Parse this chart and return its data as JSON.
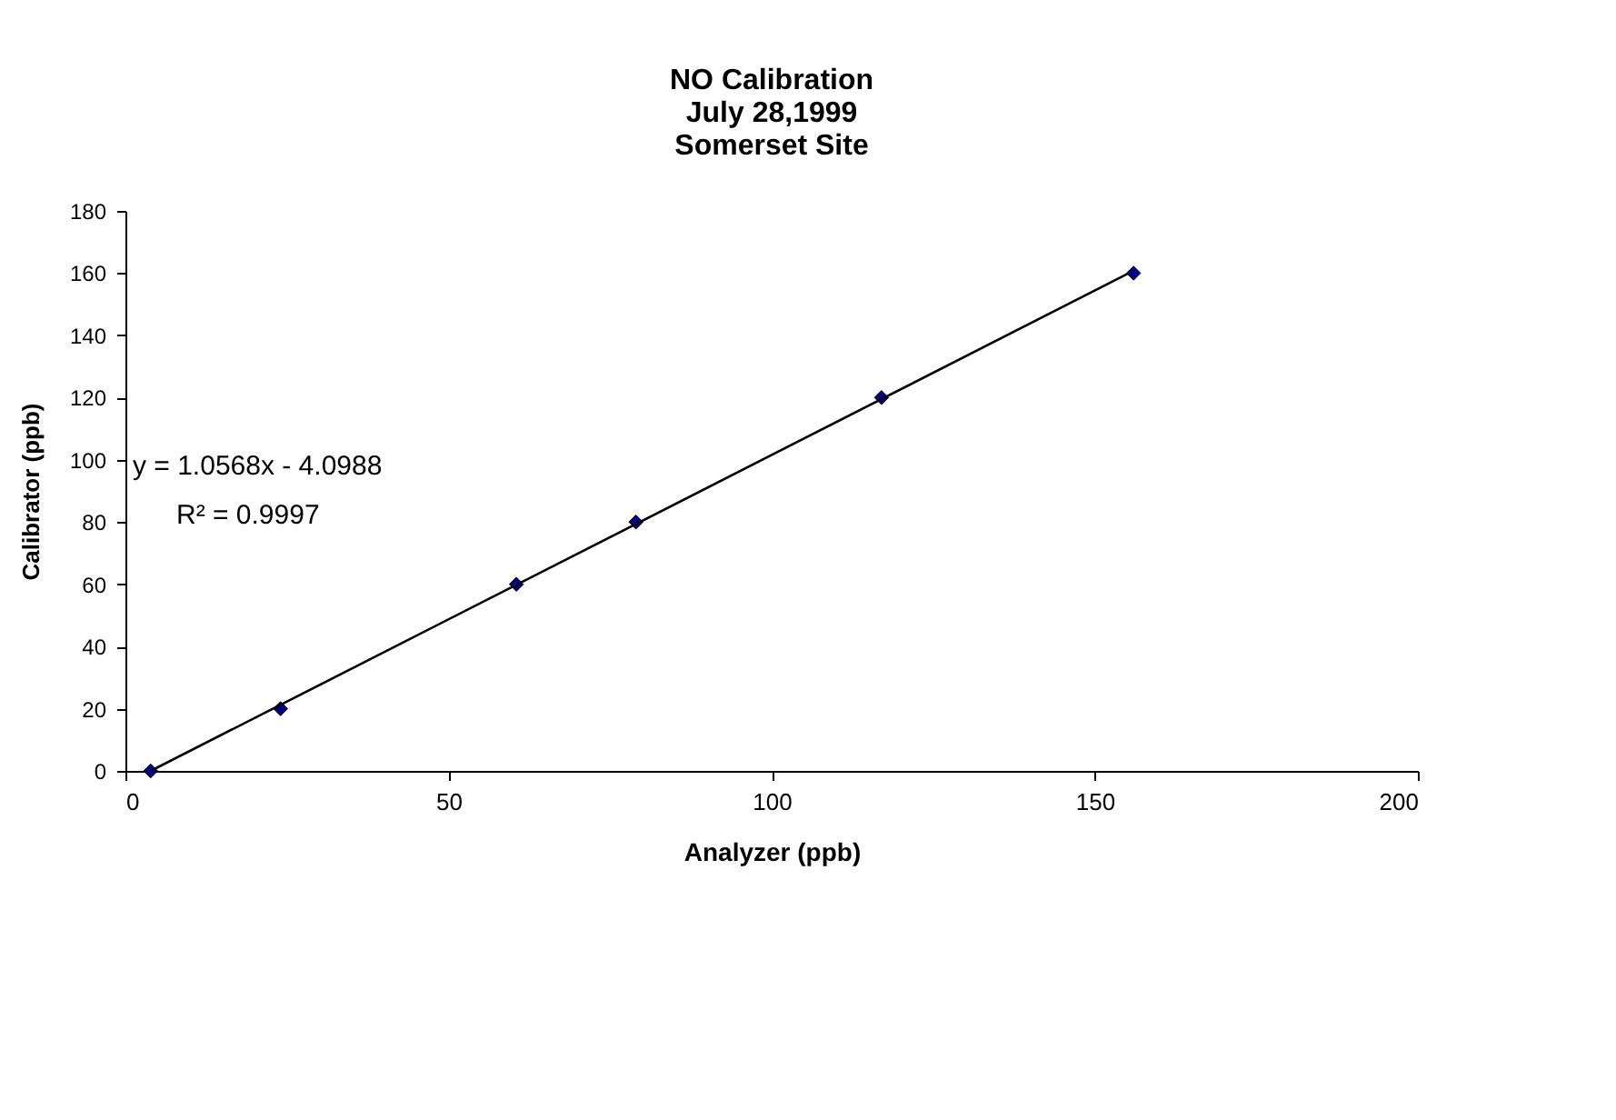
{
  "chart_data": {
    "type": "scatter",
    "title": "NO Calibration\nJuly 28,1999\nSomerset Site",
    "xlabel": "Analyzer (ppb)",
    "ylabel": "Calibrator (ppb)",
    "x": [
      3.9,
      24,
      60.5,
      79,
      117,
      156
    ],
    "series": [
      {
        "color": "#000080",
        "marker": "diamond",
        "values": [
          0,
          20,
          60,
          80,
          120,
          160
        ]
      },
      {
        "type": "line",
        "color": "#000000",
        "x": [
          3.9,
          155.3
        ],
        "values": [
          0,
          160
        ],
        "marker": "none",
        "line_style": "solid"
      }
    ],
    "annotations": [
      "y = 1.0568x - 4.0988",
      "R² = 0.9997"
    ],
    "xlim": [
      0,
      200
    ],
    "xticks": [
      0,
      50,
      100,
      150,
      200
    ],
    "ylim": [
      0,
      180
    ],
    "yticks": [
      0,
      20,
      40,
      60,
      80,
      100,
      120,
      140,
      160,
      180
    ],
    "grid": false
  }
}
